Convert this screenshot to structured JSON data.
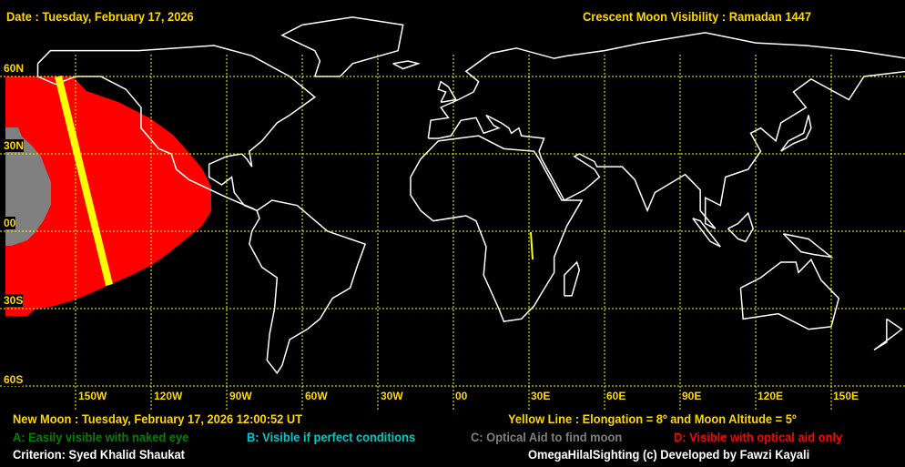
{
  "header": {
    "date": "Date : Tuesday, February 17, 2026",
    "title": "Crescent Moon Visibility : Ramadan  1447"
  },
  "map": {
    "lat_labels": [
      "60N",
      "30N",
      "00",
      "30S",
      "60S"
    ],
    "lon_labels": [
      "150W",
      "120W",
      "90W",
      "60W",
      "30W",
      "00",
      "30E",
      "60E",
      "90E",
      "120E",
      "150E"
    ],
    "colors": {
      "zone_D": "#ff0000",
      "zone_C": "#808080",
      "yellow_line": "#ffff00",
      "grid": "#ffff00",
      "coast": "#ffffff",
      "borders": "#808080"
    }
  },
  "footer": {
    "new_moon": "New Moon : Tuesday, February 17, 2026  12:00:52  UT",
    "yellow_line": "Yellow Line : Elongation = 8º  and Moon Altitude = 5º",
    "legend_a": "A: Easily visible with naked eye",
    "legend_b": "B: Visible if perfect conditions",
    "legend_c": "C: Optical Aid to find moon",
    "legend_d": "D: Visible with optical aid only",
    "criterion": "Criterion: Syed Khalid Shaukat",
    "credit": "OmegaHilalSighting  (c)  Developed by Fawzi Kayali"
  }
}
